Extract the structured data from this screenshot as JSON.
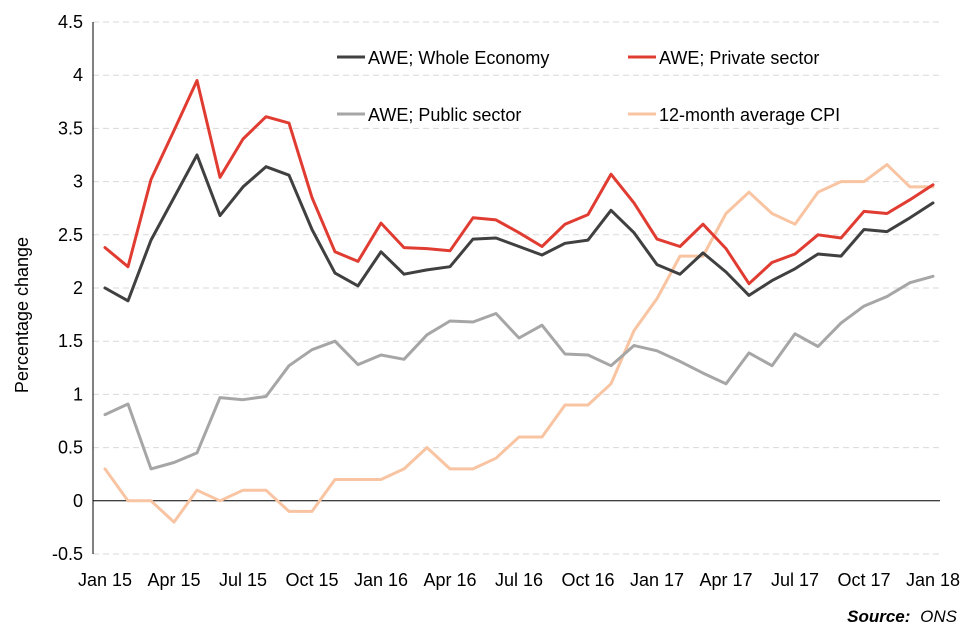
{
  "chart_data": {
    "type": "line",
    "ylabel": "Percentage change",
    "ylim": [
      -0.5,
      4.5
    ],
    "yticks": [
      -0.5,
      0,
      0.5,
      1,
      1.5,
      2,
      2.5,
      3,
      3.5,
      4,
      4.5
    ],
    "ytick_labels": [
      "-0.5",
      "0",
      "0.5",
      "1",
      "1.5",
      "2",
      "2.5",
      "3",
      "3.5",
      "4",
      "4.5"
    ],
    "x_categories": [
      "Jan 15",
      "Feb 15",
      "Mar 15",
      "Apr 15",
      "May 15",
      "Jun 15",
      "Jul 15",
      "Aug 15",
      "Sep 15",
      "Oct 15",
      "Nov 15",
      "Dec 15",
      "Jan 16",
      "Feb 16",
      "Mar 16",
      "Apr 16",
      "May 16",
      "Jun 16",
      "Jul 16",
      "Aug 16",
      "Sep 16",
      "Oct 16",
      "Nov 16",
      "Dec 16",
      "Jan 17",
      "Feb 17",
      "Mar 17",
      "Apr 17",
      "May 17",
      "Jun 17",
      "Jul 17",
      "Aug 17",
      "Sep 17",
      "Oct 17",
      "Nov 17",
      "Dec 17",
      "Jan 18"
    ],
    "x_tick_labels": [
      {
        "index": 0,
        "label": "Jan 15"
      },
      {
        "index": 3,
        "label": "Apr 15"
      },
      {
        "index": 6,
        "label": "Jul 15"
      },
      {
        "index": 9,
        "label": "Oct 15"
      },
      {
        "index": 12,
        "label": "Jan 16"
      },
      {
        "index": 15,
        "label": "Apr 16"
      },
      {
        "index": 18,
        "label": "Jul 16"
      },
      {
        "index": 21,
        "label": "Oct 16"
      },
      {
        "index": 24,
        "label": "Jan 17"
      },
      {
        "index": 27,
        "label": "Apr 17"
      },
      {
        "index": 30,
        "label": "Jul 17"
      },
      {
        "index": 33,
        "label": "Oct 17"
      },
      {
        "index": 36,
        "label": "Jan 18"
      }
    ],
    "grid": "horizontal dashed",
    "legend_position": "top",
    "series": [
      {
        "name": "AWE; Whole Economy",
        "color": "#404040",
        "values": [
          2.0,
          1.88,
          2.45,
          2.85,
          3.25,
          2.68,
          2.95,
          3.14,
          3.06,
          2.55,
          2.14,
          2.02,
          2.34,
          2.13,
          2.17,
          2.2,
          2.46,
          2.47,
          2.39,
          2.31,
          2.42,
          2.45,
          2.73,
          2.52,
          2.22,
          2.13,
          2.33,
          2.15,
          1.93,
          2.07,
          2.18,
          2.32,
          2.3,
          2.55,
          2.53,
          2.66,
          2.8
        ]
      },
      {
        "name": "AWE; Private sector",
        "color": "#e03c31",
        "values": [
          2.38,
          2.2,
          3.02,
          3.48,
          3.95,
          3.04,
          3.4,
          3.61,
          3.55,
          2.85,
          2.34,
          2.25,
          2.61,
          2.38,
          2.37,
          2.35,
          2.66,
          2.64,
          2.52,
          2.39,
          2.6,
          2.69,
          3.07,
          2.8,
          2.46,
          2.39,
          2.6,
          2.37,
          2.04,
          2.24,
          2.32,
          2.5,
          2.47,
          2.72,
          2.7,
          2.83,
          2.97
        ]
      },
      {
        "name": "AWE; Public sector",
        "color": "#a6a6a6",
        "values": [
          0.81,
          0.91,
          0.3,
          0.36,
          0.45,
          0.97,
          0.95,
          0.98,
          1.27,
          1.42,
          1.5,
          1.28,
          1.37,
          1.33,
          1.56,
          1.69,
          1.68,
          1.76,
          1.53,
          1.65,
          1.38,
          1.37,
          1.27,
          1.46,
          1.41,
          1.31,
          1.2,
          1.1,
          1.39,
          1.27,
          1.57,
          1.45,
          1.67,
          1.83,
          1.92,
          2.05,
          2.11
        ]
      },
      {
        "name": "12-month average CPI",
        "color": "#f8c4a2",
        "values": [
          0.3,
          0.0,
          0.0,
          -0.2,
          0.1,
          0.0,
          0.1,
          0.1,
          -0.1,
          -0.1,
          0.2,
          0.2,
          0.2,
          0.3,
          0.5,
          0.3,
          0.3,
          0.4,
          0.6,
          0.6,
          0.9,
          0.9,
          1.1,
          1.6,
          1.9,
          2.3,
          2.3,
          2.7,
          2.9,
          2.7,
          2.6,
          2.9,
          3.0,
          3.0,
          3.16,
          2.95,
          2.95
        ]
      }
    ]
  },
  "source": {
    "label": "Source:",
    "value": "ONS"
  }
}
